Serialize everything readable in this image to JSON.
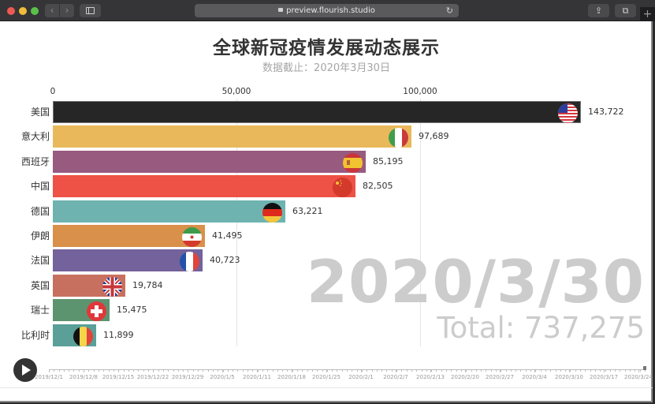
{
  "browser": {
    "url": "preview.flourish.studio",
    "back_icon": "‹",
    "forward_icon": "›",
    "reload_icon": "↻",
    "share_icon": "⇪",
    "tabs_icon": "⧉",
    "newtab_icon": "+"
  },
  "chart": {
    "title": "全球新冠疫情发展动态展示",
    "subtitle": "数据截止：2020年3月30日",
    "current_date": "2020/3/30",
    "total_label": "Total: 737,275",
    "axis_ticks": [
      {
        "label": "0",
        "value": 0
      },
      {
        "label": "50,000",
        "value": 50000
      },
      {
        "label": "100,000",
        "value": 100000
      }
    ]
  },
  "chart_data": {
    "type": "bar",
    "orientation": "horizontal",
    "title": "全球新冠疫情发展动态展示",
    "subtitle": "数据截止：2020年3月30日",
    "xlabel": "",
    "ylabel": "",
    "xlim": [
      0,
      145000
    ],
    "grid": true,
    "annotation_date": "2020/3/30",
    "annotation_total": "Total: 737,275",
    "categories": [
      "美国",
      "意大利",
      "西班牙",
      "中国",
      "德国",
      "伊朗",
      "法国",
      "英国",
      "瑞士",
      "比利时"
    ],
    "values": [
      143722,
      97689,
      85195,
      82505,
      63221,
      41495,
      40723,
      19784,
      15475,
      11899
    ],
    "value_labels": [
      "143,722",
      "97,689",
      "85,195",
      "82,505",
      "63,221",
      "41,495",
      "40,723",
      "19,784",
      "15,475",
      "11,899"
    ],
    "colors": [
      "#262626",
      "#e8b85a",
      "#995a80",
      "#ee5146",
      "#6fb3b0",
      "#d9904a",
      "#73629b",
      "#c8705f",
      "#5c9470",
      "#5aa099"
    ],
    "flags": [
      "flag-usa",
      "flag-italy",
      "flag-spain",
      "flag-china",
      "flag-germany",
      "flag-iran",
      "flag-france",
      "flag-uk",
      "flag-switzerland",
      "flag-belgium"
    ]
  },
  "timeline": {
    "play_label": "play",
    "labels": [
      "2019/12/1",
      "2019/12/8",
      "2019/12/15",
      "2019/12/22",
      "2019/12/29",
      "2020/1/5",
      "2020/1/11",
      "2020/1/18",
      "2020/1/25",
      "2020/2/1",
      "2020/2/7",
      "2020/2/13",
      "2020/2/20",
      "2020/2/27",
      "2020/3/4",
      "2020/3/10",
      "2020/3/17",
      "2020/3/24"
    ]
  }
}
